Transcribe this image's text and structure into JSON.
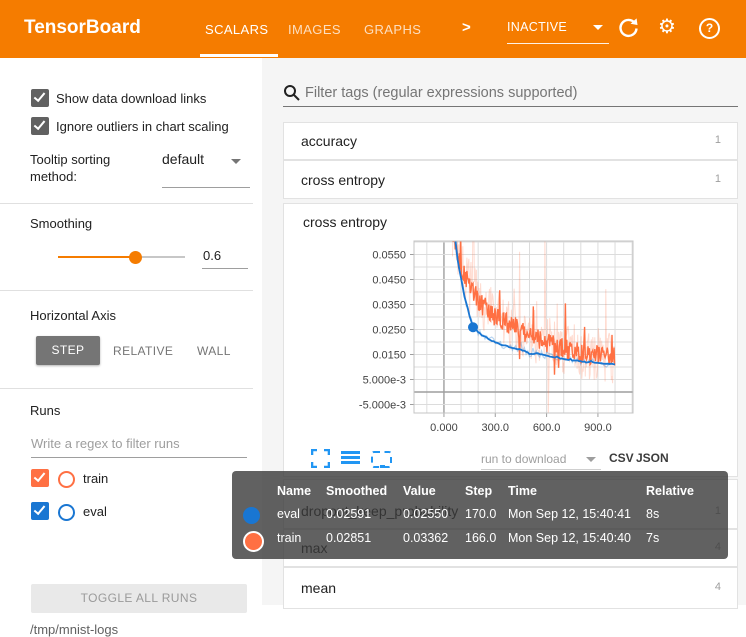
{
  "header": {
    "title": "TensorBoard",
    "tabs": [
      {
        "label": "SCALARS",
        "active": true
      },
      {
        "label": "IMAGES",
        "active": false
      },
      {
        "label": "GRAPHS",
        "active": false
      }
    ],
    "more_tabs_chevron": ">",
    "run_status": {
      "value": "INACTIVE"
    }
  },
  "sidebar": {
    "checkboxes": [
      {
        "label": "Show data download links",
        "checked": true
      },
      {
        "label": "Ignore outliers in chart scaling",
        "checked": true
      }
    ],
    "tooltip_sorting": {
      "label": "Tooltip sorting method:",
      "value": "default"
    },
    "smoothing": {
      "label": "Smoothing",
      "value": "0.6"
    },
    "horizontal_axis": {
      "label": "Horizontal Axis",
      "options": [
        {
          "label": "STEP",
          "active": true
        },
        {
          "label": "RELATIVE",
          "active": false
        },
        {
          "label": "WALL",
          "active": false
        }
      ]
    },
    "runs": {
      "label": "Runs",
      "filter_placeholder": "Write a regex to filter runs",
      "items": [
        {
          "label": "train",
          "color": "#ff7043",
          "checked": true
        },
        {
          "label": "eval",
          "color": "#1976d2",
          "checked": true
        }
      ],
      "toggle_button": "TOGGLE ALL RUNS",
      "log_path": "/tmp/mnist-logs"
    }
  },
  "main": {
    "filter_placeholder": "Filter tags (regular expressions supported)",
    "sections": [
      {
        "label": "accuracy",
        "count": "1"
      },
      {
        "label": "cross entropy",
        "count": "1"
      },
      {
        "label": "dropout_keep_probability",
        "count": "1"
      },
      {
        "label": "max",
        "count": "4"
      },
      {
        "label": "mean",
        "count": "4"
      }
    ],
    "chart_card": {
      "title": "cross entropy",
      "download_label": "run to download",
      "csv_label": "CSV",
      "json_label": "JSON"
    }
  },
  "tooltip": {
    "headers": [
      "Name",
      "Smoothed",
      "Value",
      "Step",
      "Time",
      "Relative"
    ],
    "rows": [
      {
        "name": "eval",
        "color": "#1976d2",
        "selected": false,
        "smoothed": "0.02591",
        "value": "0.02550",
        "step": "170.0",
        "time": "Mon Sep 12, 15:40:41",
        "relative": "8s"
      },
      {
        "name": "train",
        "color": "#ff7043",
        "selected": true,
        "smoothed": "0.02851",
        "value": "0.03362",
        "step": "166.0",
        "time": "Mon Sep 12, 15:40:40",
        "relative": "7s"
      }
    ]
  },
  "chart_data": {
    "type": "line",
    "title": "cross entropy",
    "x_range": [
      -175,
      1105
    ],
    "y_range": [
      -0.0084,
      0.0604
    ],
    "grid": true,
    "x_ticks": [
      {
        "value": 0,
        "label": "0.000"
      },
      {
        "value": 300,
        "label": "300.0"
      },
      {
        "value": 600,
        "label": "600.0"
      },
      {
        "value": 900,
        "label": "900.0"
      }
    ],
    "y_ticks": [
      {
        "value": 0.055,
        "label": "0.0550"
      },
      {
        "value": 0.045,
        "label": "0.0450"
      },
      {
        "value": 0.035,
        "label": "0.0350"
      },
      {
        "value": 0.025,
        "label": "0.0250"
      },
      {
        "value": 0.015,
        "label": "0.0150"
      },
      {
        "value": 0.005,
        "label": "5.000e-3"
      },
      {
        "value": -0.005,
        "label": "-5.000e-3"
      }
    ],
    "series": [
      {
        "name": "train-raw",
        "color": "#ff7043",
        "opacity": 0.25,
        "width": 1,
        "noise": 0.011,
        "seed": 7,
        "step": 4,
        "domain": [
          50,
          1000
        ],
        "anchors": [
          [
            50,
            0.065
          ],
          [
            90,
            0.052
          ],
          [
            130,
            0.045
          ],
          [
            170,
            0.04
          ],
          [
            210,
            0.036
          ],
          [
            250,
            0.033
          ],
          [
            290,
            0.0305
          ],
          [
            330,
            0.029
          ],
          [
            370,
            0.0275
          ],
          [
            410,
            0.026
          ],
          [
            450,
            0.0248
          ],
          [
            490,
            0.0232
          ],
          [
            530,
            0.0218
          ],
          [
            570,
            0.0205
          ],
          [
            610,
            0.0194
          ],
          [
            650,
            0.0185
          ],
          [
            690,
            0.0176
          ],
          [
            730,
            0.0168
          ],
          [
            770,
            0.0161
          ],
          [
            810,
            0.0155
          ],
          [
            850,
            0.015
          ],
          [
            890,
            0.0146
          ],
          [
            930,
            0.0143
          ],
          [
            970,
            0.0141
          ],
          [
            1000,
            0.0146
          ]
        ]
      },
      {
        "name": "eval-raw",
        "color": "#1976d2",
        "opacity": 0.3,
        "width": 1.2,
        "noise": 0.0014,
        "seed": 3,
        "step": 10,
        "domain": [
          0,
          1000
        ],
        "anchors": [
          [
            0,
            0.105
          ],
          [
            40,
            0.076
          ],
          [
            80,
            0.053
          ],
          [
            120,
            0.038
          ],
          [
            170,
            0.0259
          ],
          [
            220,
            0.0229
          ],
          [
            270,
            0.0209
          ],
          [
            320,
            0.0193
          ],
          [
            370,
            0.0183
          ],
          [
            420,
            0.0173
          ],
          [
            460,
            0.0167
          ],
          [
            500,
            0.0153
          ],
          [
            550,
            0.0154
          ],
          [
            600,
            0.0146
          ],
          [
            650,
            0.0139
          ],
          [
            700,
            0.0132
          ],
          [
            750,
            0.0127
          ],
          [
            800,
            0.0123
          ],
          [
            850,
            0.0119
          ],
          [
            900,
            0.0116
          ],
          [
            950,
            0.0113
          ],
          [
            1000,
            0.0111
          ]
        ]
      },
      {
        "name": "train",
        "color": "#ff7043",
        "opacity": 1,
        "width": 1.4,
        "noise": 0.0042,
        "seed": 13,
        "step": 4,
        "domain": [
          50,
          1000
        ],
        "anchors": [
          [
            50,
            0.065
          ],
          [
            90,
            0.052
          ],
          [
            130,
            0.045
          ],
          [
            170,
            0.04
          ],
          [
            210,
            0.036
          ],
          [
            250,
            0.033
          ],
          [
            290,
            0.0305
          ],
          [
            330,
            0.029
          ],
          [
            370,
            0.0275
          ],
          [
            410,
            0.026
          ],
          [
            450,
            0.0248
          ],
          [
            490,
            0.0232
          ],
          [
            530,
            0.0218
          ],
          [
            570,
            0.0205
          ],
          [
            610,
            0.0194
          ],
          [
            650,
            0.0185
          ],
          [
            690,
            0.0176
          ],
          [
            730,
            0.0168
          ],
          [
            770,
            0.0161
          ],
          [
            810,
            0.0155
          ],
          [
            850,
            0.015
          ],
          [
            890,
            0.0146
          ],
          [
            930,
            0.0143
          ],
          [
            970,
            0.0141
          ],
          [
            1000,
            0.0146
          ]
        ]
      },
      {
        "name": "eval",
        "color": "#1976d2",
        "opacity": 1,
        "width": 1.8,
        "noise": 0.0002,
        "seed": 5,
        "step": 10,
        "domain": [
          0,
          1000
        ],
        "anchors": [
          [
            0,
            0.105
          ],
          [
            40,
            0.076
          ],
          [
            80,
            0.053
          ],
          [
            120,
            0.038
          ],
          [
            170,
            0.0259
          ],
          [
            220,
            0.0229
          ],
          [
            270,
            0.0209
          ],
          [
            320,
            0.0193
          ],
          [
            370,
            0.0183
          ],
          [
            420,
            0.0173
          ],
          [
            460,
            0.0167
          ],
          [
            500,
            0.0153
          ],
          [
            550,
            0.0154
          ],
          [
            600,
            0.0146
          ],
          [
            650,
            0.0139
          ],
          [
            700,
            0.0132
          ],
          [
            750,
            0.0127
          ],
          [
            800,
            0.0123
          ],
          [
            850,
            0.0119
          ],
          [
            900,
            0.0116
          ],
          [
            950,
            0.0113
          ],
          [
            1000,
            0.0111
          ]
        ]
      }
    ],
    "marker": {
      "series": "eval",
      "x": 170,
      "y": 0.0259,
      "color": "#1976d2"
    }
  },
  "colors": {
    "header_bg": "#f57c00",
    "train": "#ff7043",
    "eval": "#1976d2",
    "toolbar_icon_blue": "#2196f3"
  }
}
